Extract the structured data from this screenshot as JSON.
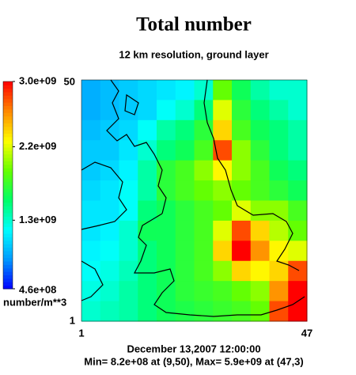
{
  "chart_data": {
    "type": "heatmap",
    "title": "Total number",
    "subtitle": "12 km resolution, ground layer",
    "colorbar_label": "number/m**3",
    "colorbar_lim": [
      460000000.0,
      3000000000.0
    ],
    "colorbar_ticks": [
      {
        "value": 3000000000.0,
        "label": "3.0e+09"
      },
      {
        "value": 2200000000.0,
        "label": "2.2e+09"
      },
      {
        "value": 1300000000.0,
        "label": "1.3e+09"
      },
      {
        "value": 460000000.0,
        "label": "4.6e+08"
      }
    ],
    "colormap": [
      "#0000ff",
      "#0099ff",
      "#00ffff",
      "#00ff66",
      "#66ff00",
      "#ffff00",
      "#ff8800",
      "#ff0000"
    ],
    "xlim": [
      1,
      47
    ],
    "ylim": [
      1,
      50
    ],
    "xticks": [
      1,
      47
    ],
    "yticks": [
      1,
      50
    ],
    "date": "December 13,2007 12:00:00",
    "stats": "Min= 8.2e+08 at (9,50), Max= 5.9e+09 at (47,3)",
    "rows": [
      [
        900000000.0,
        950000000.0,
        1000000000.0,
        1050000000.0,
        1100000000.0,
        1150000000.0,
        1300000000.0,
        1900000000.0,
        1600000000.0,
        1400000000.0,
        1300000000.0,
        1300000000.0
      ],
      [
        900000000.0,
        950000000.0,
        1000000000.0,
        1050000000.0,
        1200000000.0,
        1300000000.0,
        1500000000.0,
        2200000000.0,
        1700000000.0,
        1500000000.0,
        1400000000.0,
        1300000000.0
      ],
      [
        950000000.0,
        1000000000.0,
        1050000000.0,
        1200000000.0,
        1400000000.0,
        1500000000.0,
        1700000000.0,
        2400000000.0,
        1800000000.0,
        1600000000.0,
        1500000000.0,
        1400000000.0
      ],
      [
        1000000000.0,
        1000000000.0,
        1100000000.0,
        1300000000.0,
        1500000000.0,
        1600000000.0,
        1800000000.0,
        2800000000.0,
        2000000000.0,
        1700000000.0,
        1500000000.0,
        1400000000.0
      ],
      [
        1000000000.0,
        1050000000.0,
        1150000000.0,
        1400000000.0,
        1700000000.0,
        1800000000.0,
        2000000000.0,
        2300000000.0,
        2000000000.0,
        1800000000.0,
        1600000000.0,
        1500000000.0
      ],
      [
        1050000000.0,
        1100000000.0,
        1200000000.0,
        1400000000.0,
        1700000000.0,
        1800000000.0,
        1900000000.0,
        2000000000.0,
        1900000000.0,
        1800000000.0,
        1700000000.0,
        1600000000.0
      ],
      [
        1100000000.0,
        1100000000.0,
        1200000000.0,
        1500000000.0,
        1600000000.0,
        1700000000.0,
        1800000000.0,
        1900000000.0,
        2200000000.0,
        2000000000.0,
        2000000000.0,
        1800000000.0
      ],
      [
        1100000000.0,
        1150000000.0,
        1300000000.0,
        1600000000.0,
        1600000000.0,
        1700000000.0,
        1800000000.0,
        2200000000.0,
        2800000000.0,
        2400000000.0,
        2100000000.0,
        1900000000.0
      ],
      [
        1150000000.0,
        1200000000.0,
        1300000000.0,
        1500000000.0,
        1600000000.0,
        1700000000.0,
        1800000000.0,
        2400000000.0,
        3100000000.0,
        2600000000.0,
        2300000000.0,
        2200000000.0
      ],
      [
        1200000000.0,
        1250000000.0,
        1350000000.0,
        1500000000.0,
        1600000000.0,
        1700000000.0,
        1800000000.0,
        2000000000.0,
        2400000000.0,
        2300000000.0,
        2400000000.0,
        2800000000.0
      ],
      [
        1250000000.0,
        1300000000.0,
        1400000000.0,
        1500000000.0,
        1600000000.0,
        1700000000.0,
        1750000000.0,
        1800000000.0,
        1900000000.0,
        2000000000.0,
        2600000000.0,
        3200000000.0
      ],
      [
        1300000000.0,
        1350000000.0,
        1400000000.0,
        1500000000.0,
        1600000000.0,
        1650000000.0,
        1700000000.0,
        1750000000.0,
        1800000000.0,
        1900000000.0,
        2800000000.0,
        3500000000.0
      ]
    ]
  }
}
